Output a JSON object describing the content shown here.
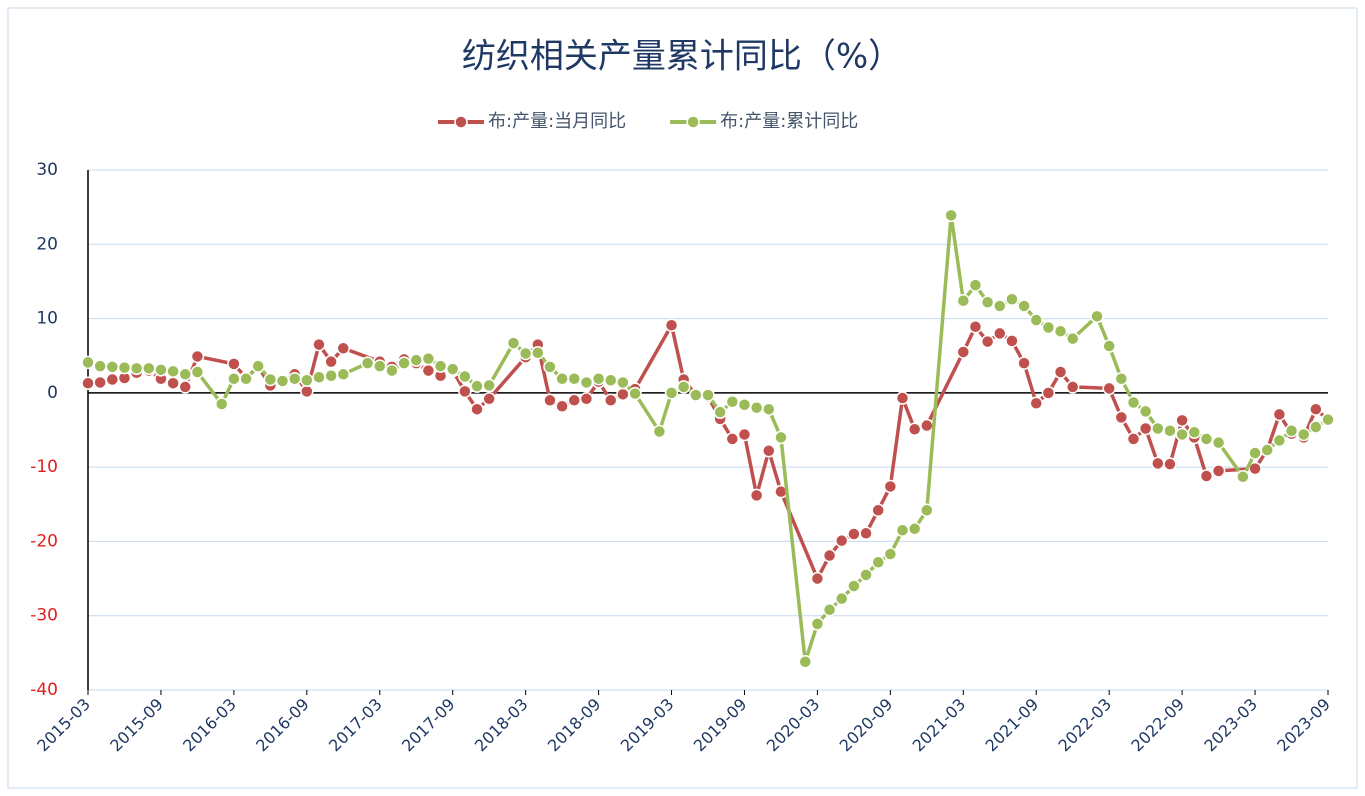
{
  "chart_data": {
    "type": "line",
    "title": "纺织相关产量累计同比（%）",
    "xlim": [
      "2015-03",
      "2023-09"
    ],
    "xticks": [
      "2015-03",
      "2015-09",
      "2016-03",
      "2016-09",
      "2017-03",
      "2017-09",
      "2018-03",
      "2018-09",
      "2019-03",
      "2019-09",
      "2020-03",
      "2020-09",
      "2021-03",
      "2021-09",
      "2022-03",
      "2022-09",
      "2023-03",
      "2023-09"
    ],
    "ylim": [
      -40,
      30
    ],
    "yticks": [
      -40,
      -30,
      -20,
      -10,
      0,
      10,
      20,
      30
    ],
    "grid": true,
    "legend": "top",
    "ytick_color": "#1f3864",
    "ytick_negative_color": "#e02020",
    "series": [
      {
        "name": "布:产量:当月同比",
        "color": "#c0504d",
        "x": [
          "2015-03",
          "2015-04",
          "2015-05",
          "2015-06",
          "2015-07",
          "2015-08",
          "2015-09",
          "2015-10",
          "2015-11",
          "2015-12",
          "2016-03",
          "2016-04",
          "2016-05",
          "2016-06",
          "2016-07",
          "2016-08",
          "2016-09",
          "2016-10",
          "2016-11",
          "2016-12",
          "2017-03",
          "2017-04",
          "2017-05",
          "2017-06",
          "2017-07",
          "2017-08",
          "2017-09",
          "2017-10",
          "2017-11",
          "2017-12",
          "2018-03",
          "2018-04",
          "2018-05",
          "2018-06",
          "2018-07",
          "2018-08",
          "2018-09",
          "2018-10",
          "2018-11",
          "2018-12",
          "2019-03",
          "2019-04",
          "2019-05",
          "2019-06",
          "2019-07",
          "2019-08",
          "2019-09",
          "2019-10",
          "2019-11",
          "2019-12",
          "2020-03",
          "2020-04",
          "2020-05",
          "2020-06",
          "2020-07",
          "2020-08",
          "2020-09",
          "2020-10",
          "2020-11",
          "2020-12",
          "2021-03",
          "2021-04",
          "2021-05",
          "2021-06",
          "2021-07",
          "2021-08",
          "2021-09",
          "2021-10",
          "2021-11",
          "2021-12",
          "2022-03",
          "2022-04",
          "2022-05",
          "2022-06",
          "2022-07",
          "2022-08",
          "2022-09",
          "2022-10",
          "2022-11",
          "2022-12",
          "2023-03",
          "2023-04",
          "2023-05",
          "2023-06",
          "2023-07",
          "2023-08",
          "2023-09"
        ],
        "values": [
          1.3,
          1.4,
          1.8,
          2.0,
          2.7,
          3.0,
          1.9,
          1.3,
          0.8,
          4.9,
          3.9,
          2.0,
          3.5,
          1.0,
          1.5,
          2.5,
          0.2,
          6.5,
          4.2,
          6.0,
          4.2,
          3.5,
          4.5,
          4.0,
          3.0,
          2.3,
          3.0,
          0.2,
          -2.2,
          -0.8,
          4.8,
          6.5,
          -1.0,
          -1.8,
          -1.0,
          -0.8,
          1.5,
          -1.0,
          -0.2,
          0.5,
          9.1,
          1.8,
          -0.3,
          -0.5,
          -3.5,
          -6.2,
          -5.6,
          -13.8,
          -7.8,
          -13.3,
          -25.0,
          -21.9,
          -19.9,
          -19.0,
          -18.9,
          -15.8,
          -12.6,
          -0.7,
          -4.9,
          -4.4,
          5.5,
          8.9,
          6.9,
          8.0,
          7.0,
          4.0,
          -1.4,
          0.0,
          2.8,
          0.8,
          0.6,
          -3.3,
          -6.2,
          -4.8,
          -9.5,
          -9.6,
          -3.7,
          -6.0,
          -11.2,
          -10.5,
          -10.2,
          -7.7,
          -2.9,
          -5.5,
          -6.0,
          -2.2,
          -3.6
        ]
      },
      {
        "name": "布:产量:累计同比",
        "color": "#9bbb59",
        "x": [
          "2015-03",
          "2015-04",
          "2015-05",
          "2015-06",
          "2015-07",
          "2015-08",
          "2015-09",
          "2015-10",
          "2015-11",
          "2015-12",
          "2016-02",
          "2016-03",
          "2016-04",
          "2016-05",
          "2016-06",
          "2016-07",
          "2016-08",
          "2016-09",
          "2016-10",
          "2016-11",
          "2016-12",
          "2017-02",
          "2017-03",
          "2017-04",
          "2017-05",
          "2017-06",
          "2017-07",
          "2017-08",
          "2017-09",
          "2017-10",
          "2017-11",
          "2017-12",
          "2018-02",
          "2018-03",
          "2018-04",
          "2018-05",
          "2018-06",
          "2018-07",
          "2018-08",
          "2018-09",
          "2018-10",
          "2018-11",
          "2018-12",
          "2019-02",
          "2019-03",
          "2019-04",
          "2019-05",
          "2019-06",
          "2019-07",
          "2019-08",
          "2019-09",
          "2019-10",
          "2019-11",
          "2019-12",
          "2020-02",
          "2020-03",
          "2020-04",
          "2020-05",
          "2020-06",
          "2020-07",
          "2020-08",
          "2020-09",
          "2020-10",
          "2020-11",
          "2020-12",
          "2021-02",
          "2021-03",
          "2021-04",
          "2021-05",
          "2021-06",
          "2021-07",
          "2021-08",
          "2021-09",
          "2021-10",
          "2021-11",
          "2021-12",
          "2022-02",
          "2022-03",
          "2022-04",
          "2022-05",
          "2022-06",
          "2022-07",
          "2022-08",
          "2022-09",
          "2022-10",
          "2022-11",
          "2022-12",
          "2023-02",
          "2023-03",
          "2023-04",
          "2023-05",
          "2023-06",
          "2023-07",
          "2023-08",
          "2023-09"
        ],
        "values": [
          4.1,
          3.6,
          3.5,
          3.4,
          3.3,
          3.3,
          3.1,
          2.9,
          2.5,
          2.8,
          -1.5,
          1.9,
          1.9,
          3.6,
          1.8,
          1.6,
          1.9,
          1.7,
          2.1,
          2.3,
          2.5,
          4.0,
          3.6,
          3.0,
          4.0,
          4.4,
          4.6,
          3.6,
          3.2,
          2.2,
          0.9,
          1.0,
          6.7,
          5.3,
          5.4,
          3.5,
          1.9,
          1.9,
          1.4,
          1.9,
          1.7,
          1.4,
          -0.1,
          -5.2,
          0.0,
          0.8,
          -0.3,
          -0.3,
          -2.6,
          -1.2,
          -1.6,
          -2.0,
          -2.2,
          -6.0,
          -36.2,
          -31.1,
          -29.2,
          -27.7,
          -26.0,
          -24.5,
          -22.8,
          -21.7,
          -18.5,
          -18.3,
          -15.8,
          23.9,
          12.4,
          14.5,
          12.2,
          11.7,
          12.6,
          11.7,
          9.8,
          8.8,
          8.3,
          7.3,
          10.3,
          6.3,
          1.9,
          -1.3,
          -2.5,
          -4.8,
          -5.1,
          -5.6,
          -5.3,
          -6.2,
          -6.7,
          -11.3,
          -8.1,
          -7.7,
          -6.4,
          -5.1,
          -5.6,
          -4.6,
          -3.6
        ]
      }
    ]
  }
}
